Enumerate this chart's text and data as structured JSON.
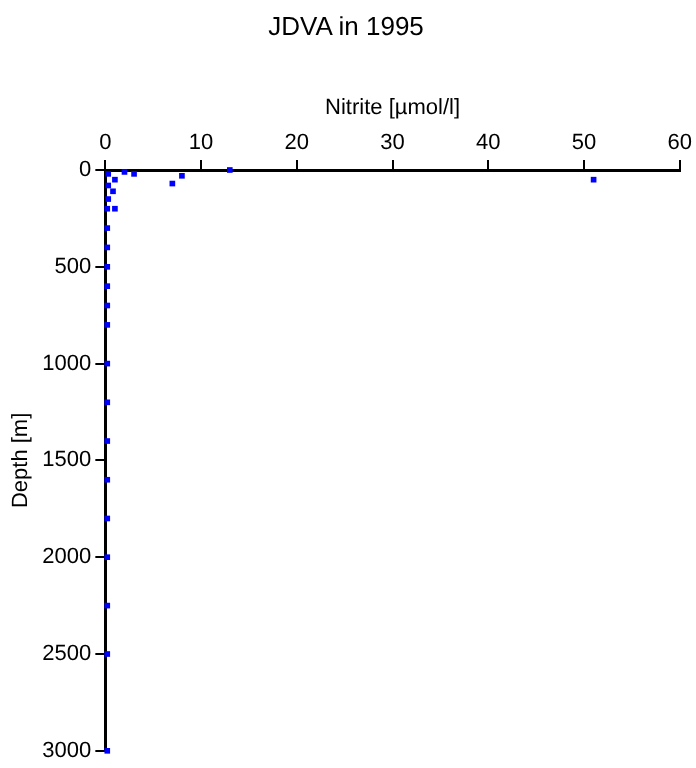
{
  "chart_data": {
    "type": "scatter",
    "title": "JDVA in 1995",
    "xlabel": "Nitrite [µmol/l]",
    "ylabel": "Depth [m]",
    "xlim": [
      0,
      60
    ],
    "xticks": [
      0,
      10,
      20,
      30,
      40,
      50,
      60
    ],
    "ylim": [
      3000,
      0
    ],
    "yticks": [
      0,
      500,
      1000,
      1500,
      2000,
      2500,
      3000
    ],
    "grid": false,
    "legend": false,
    "marker": "square",
    "series": [
      {
        "color": "#0000ff",
        "x": [
          13,
          51,
          8,
          7,
          3,
          2,
          0.3,
          1,
          0.3,
          0.8,
          0.3,
          0.2,
          1,
          0.2,
          0.2,
          0.2,
          0.2,
          0.2,
          0.2,
          0.2,
          0.2,
          0.2,
          0.2,
          0.2,
          0.2,
          0.2,
          0.2,
          0.2
        ],
        "values": [
          0,
          50,
          30,
          70,
          20,
          10,
          20,
          50,
          80,
          110,
          150,
          200,
          200,
          300,
          400,
          500,
          600,
          700,
          800,
          1000,
          1200,
          1400,
          1600,
          1800,
          2000,
          2250,
          2500,
          3000
        ]
      }
    ]
  }
}
